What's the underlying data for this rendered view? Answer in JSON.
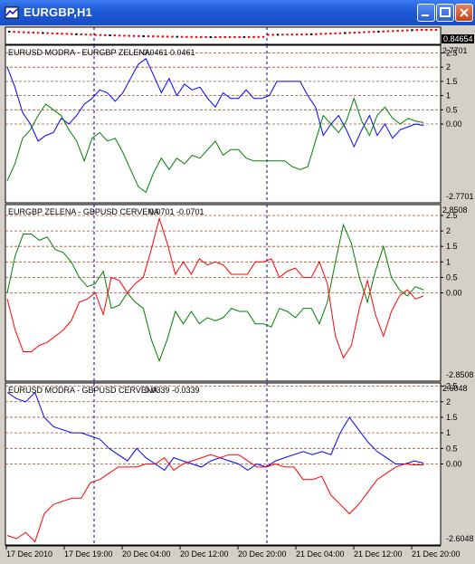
{
  "window": {
    "title": "EURGBP,H1"
  },
  "price": {
    "current_label": "0.84654",
    "axis_label": "0.8465"
  },
  "chart_data": [
    {
      "type": "line",
      "title": "EURUSD MODRA - EURGBP ZELENA",
      "values_text": "-0.0461 0.0461",
      "ylim": [
        -2.7701,
        2.7701
      ],
      "y_ticks": [
        "2.5",
        "2",
        "1.5",
        "1",
        "0.5",
        "0.00",
        "-2.7701"
      ],
      "top_label": "2.7701",
      "series": [
        {
          "color": "#0000ff",
          "values": [
            2.0,
            1.3,
            0.4,
            0.0,
            -0.6,
            -0.4,
            -0.3,
            0.2,
            0.0,
            0.3,
            0.7,
            0.9,
            1.2,
            1.1,
            0.8,
            1.1,
            1.6,
            2.1,
            2.3,
            1.7,
            1.1,
            1.6,
            1.0,
            1.4,
            1.2,
            1.3,
            0.9,
            0.6,
            1.1,
            0.9,
            0.9,
            1.2,
            0.9,
            0.9,
            1.0,
            1.5,
            1.5,
            1.5,
            1.5,
            1.0,
            0.6,
            -0.4,
            0.0,
            0.3,
            -0.2,
            -0.8,
            -0.2,
            0.3,
            -0.4,
            0.0,
            -0.5,
            -0.2,
            -0.1,
            0.0,
            -0.05
          ]
        },
        {
          "color": "#008000",
          "values": [
            -2.0,
            -1.4,
            -0.5,
            -0.2,
            0.3,
            0.7,
            0.5,
            0.3,
            -0.2,
            -0.6,
            -1.3,
            -0.5,
            -0.3,
            -0.6,
            -0.5,
            -1.0,
            -1.6,
            -2.2,
            -2.4,
            -1.7,
            -1.2,
            -1.6,
            -1.2,
            -1.4,
            -1.1,
            -1.2,
            -0.9,
            -0.6,
            -1.1,
            -0.9,
            -0.9,
            -1.2,
            -1.3,
            -1.3,
            -1.3,
            -1.3,
            -1.3,
            -1.5,
            -1.6,
            -1.5,
            -0.6,
            0.3,
            0.0,
            -0.3,
            0.1,
            0.9,
            0.1,
            -0.4,
            0.3,
            0.6,
            0.2,
            0.0,
            0.2,
            0.1,
            0.05
          ]
        }
      ]
    },
    {
      "type": "line",
      "title": "EURGBP ZELENA - GBPUSD CERVENA",
      "values_text": "0.0701 -0.0701",
      "ylim": [
        -2.8508,
        2.8508
      ],
      "y_ticks": [
        "2.5",
        "2",
        "1.5",
        "1",
        "0.5",
        "0.00",
        "-2.8508"
      ],
      "top_label": "2.8508",
      "series": [
        {
          "color": "#008000",
          "values": [
            0.0,
            1.2,
            1.9,
            1.9,
            1.7,
            1.8,
            1.4,
            1.3,
            1.0,
            0.5,
            0.2,
            0.3,
            0.7,
            -0.5,
            -0.4,
            0.0,
            -0.3,
            -0.5,
            -1.5,
            -2.2,
            -1.5,
            -0.6,
            -1.0,
            -0.6,
            -1.0,
            -0.8,
            -0.9,
            -0.8,
            -0.5,
            -0.6,
            -0.6,
            -1.0,
            -1.0,
            -1.1,
            -0.5,
            -0.6,
            -0.8,
            -0.5,
            -0.5,
            -1.0,
            -0.3,
            1.0,
            2.2,
            1.6,
            0.5,
            -0.3,
            0.7,
            1.5,
            0.5,
            0.1,
            -0.1,
            0.2,
            0.1
          ]
        },
        {
          "color": "#ff0000",
          "values": [
            -0.2,
            -1.2,
            -1.9,
            -1.9,
            -1.7,
            -1.6,
            -1.4,
            -1.2,
            -0.9,
            -0.3,
            -0.2,
            0.0,
            -0.7,
            0.5,
            0.4,
            0.0,
            0.3,
            0.5,
            1.4,
            2.4,
            1.6,
            0.6,
            1.0,
            0.6,
            1.1,
            0.9,
            1.0,
            0.9,
            0.6,
            0.6,
            0.6,
            1.0,
            1.0,
            1.1,
            0.5,
            0.7,
            0.8,
            0.5,
            0.5,
            1.0,
            0.3,
            -1.4,
            -2.1,
            -1.7,
            -0.5,
            0.4,
            -0.7,
            -1.4,
            -0.6,
            -0.1,
            0.1,
            -0.2,
            -0.1
          ]
        }
      ]
    },
    {
      "type": "line",
      "title": "EURUSD MODRA - GBPUSD CERVENA",
      "values_text": "0.0339 -0.0339",
      "ylim": [
        -2.6048,
        2.6048
      ],
      "y_ticks": [
        "2.5",
        "2",
        "1.5",
        "1",
        "0.5",
        "0.00",
        "-2.6048"
      ],
      "top_label": "2.6048",
      "series": [
        {
          "color": "#0000ff",
          "values": [
            2.3,
            2.1,
            2.0,
            2.3,
            1.5,
            1.2,
            1.1,
            1.0,
            1.0,
            0.9,
            0.8,
            0.5,
            0.3,
            0.1,
            0.5,
            0.2,
            0.0,
            -0.2,
            0.2,
            0.1,
            0.0,
            -0.1,
            0.1,
            0.2,
            0.1,
            0.0,
            -0.2,
            0.0,
            -0.1,
            0.1,
            0.2,
            0.3,
            0.4,
            0.3,
            0.4,
            0.3,
            1.0,
            1.5,
            1.1,
            0.7,
            0.4,
            0.2,
            0.0,
            0.0,
            0.1,
            0.03
          ]
        },
        {
          "color": "#ff0000",
          "values": [
            -2.3,
            -2.4,
            -2.2,
            -2.5,
            -1.6,
            -1.3,
            -1.2,
            -1.1,
            -1.1,
            -0.6,
            -0.5,
            -0.3,
            -0.1,
            -0.1,
            -0.1,
            0.0,
            0.0,
            0.2,
            -0.2,
            0.0,
            0.1,
            0.2,
            0.3,
            0.2,
            0.3,
            0.3,
            0.1,
            -0.1,
            -0.1,
            0.0,
            -0.1,
            -0.1,
            -0.5,
            -0.5,
            -0.4,
            -1.0,
            -1.3,
            -1.6,
            -1.3,
            -0.9,
            -0.5,
            -0.3,
            -0.1,
            0.0,
            -0.03,
            -0.03
          ]
        }
      ]
    }
  ],
  "x_axis": {
    "labels": [
      "17 Dec 2010",
      "17 Dec 19:00",
      "20 Dec 04:00",
      "20 Dec 12:00",
      "20 Dec 20:00",
      "21 Dec 04:00",
      "21 Dec 12:00",
      "21 Dec 20:00"
    ]
  }
}
